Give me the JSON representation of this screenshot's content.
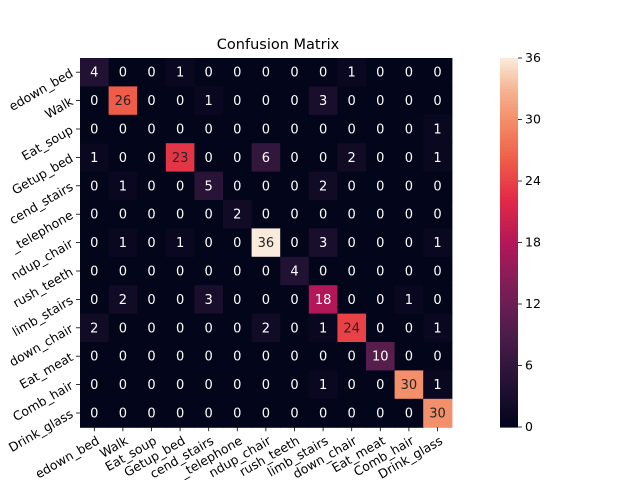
{
  "chart_data": {
    "type": "heatmap",
    "title": "Confusion Matrix",
    "xlabel": "",
    "ylabel": "",
    "row_labels": [
      "Liedown_bed",
      "Walk",
      "Eat_soup",
      "Getup_bed",
      "Descend_stairs",
      "Use_telephone",
      "Standup_chair",
      "Brush_teeth",
      "Climb_stairs",
      "Sitdown_chair",
      "Eat_meat",
      "Comb_hair",
      "Drink_glass"
    ],
    "col_labels": [
      "Liedown_bed",
      "Walk",
      "Eat_soup",
      "Getup_bed",
      "Descend_stairs",
      "Use_telephone",
      "Standup_chair",
      "Brush_teeth",
      "Climb_stairs",
      "Sitdown_chair",
      "Eat_meat",
      "Comb_hair",
      "Drink_glass"
    ],
    "row_labels_visible": [
      "edown_bed",
      "Walk",
      "Eat_soup",
      "Getup_bed",
      "cend_stairs",
      "_telephone",
      "ndup_chair",
      "rush_teeth",
      "limb_stairs",
      "down_chair",
      "Eat_meat",
      "Comb_hair",
      "Drink_glass"
    ],
    "col_labels_visible": [
      "edown_bed",
      "Walk",
      "Eat_soup",
      "Getup_bed",
      "cend_stairs",
      "_telephone",
      "ndup_chair",
      "rush_teeth",
      "limb_stairs",
      "down_chair",
      "Eat_meat",
      "Comb_hair",
      "Drink_glass"
    ],
    "values": [
      [
        4,
        0,
        0,
        1,
        0,
        0,
        0,
        0,
        0,
        1,
        0,
        0,
        0
      ],
      [
        0,
        26,
        0,
        0,
        1,
        0,
        0,
        0,
        3,
        0,
        0,
        0,
        0
      ],
      [
        0,
        0,
        0,
        0,
        0,
        0,
        0,
        0,
        0,
        0,
        0,
        0,
        1
      ],
      [
        1,
        0,
        0,
        23,
        0,
        0,
        6,
        0,
        0,
        2,
        0,
        0,
        1
      ],
      [
        0,
        1,
        0,
        0,
        5,
        0,
        0,
        0,
        2,
        0,
        0,
        0,
        0
      ],
      [
        0,
        0,
        0,
        0,
        0,
        2,
        0,
        0,
        0,
        0,
        0,
        0,
        0
      ],
      [
        0,
        1,
        0,
        1,
        0,
        0,
        36,
        0,
        3,
        0,
        0,
        0,
        1
      ],
      [
        0,
        0,
        0,
        0,
        0,
        0,
        0,
        4,
        0,
        0,
        0,
        0,
        0
      ],
      [
        0,
        2,
        0,
        0,
        3,
        0,
        0,
        0,
        18,
        0,
        0,
        1,
        0
      ],
      [
        2,
        0,
        0,
        0,
        0,
        0,
        2,
        0,
        1,
        24,
        0,
        0,
        1
      ],
      [
        0,
        0,
        0,
        0,
        0,
        0,
        0,
        0,
        0,
        0,
        10,
        0,
        0
      ],
      [
        0,
        0,
        0,
        0,
        0,
        0,
        0,
        0,
        1,
        0,
        0,
        30,
        1
      ],
      [
        0,
        0,
        0,
        0,
        0,
        0,
        0,
        0,
        0,
        0,
        0,
        0,
        30
      ]
    ],
    "colorbar": {
      "min": 0,
      "max": 36,
      "ticks": [
        0,
        6,
        12,
        18,
        24,
        30,
        36
      ]
    },
    "colormap": "rocket",
    "grid": false,
    "legend": "colorbar-right"
  }
}
